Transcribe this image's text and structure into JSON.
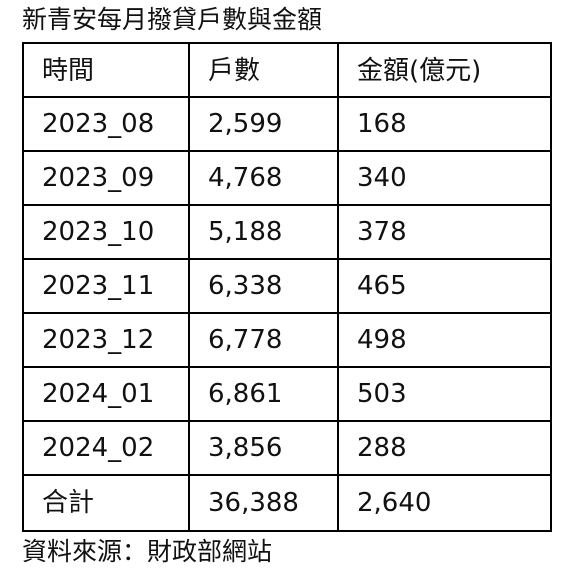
{
  "title": "新青安每月撥貸戶數與金額",
  "table": {
    "header": [
      "時間",
      "戶數",
      "金額(億元)"
    ],
    "rows": [
      [
        "2023_08",
        "2,599",
        "168"
      ],
      [
        "2023_09",
        "4,768",
        "340"
      ],
      [
        "2023_10",
        "5,188",
        "378"
      ],
      [
        "2023_11",
        "6,338",
        "465"
      ],
      [
        "2023_12",
        "6,778",
        "498"
      ],
      [
        "2024_01",
        "6,861",
        "503"
      ],
      [
        "2024_02",
        "3,856",
        "288"
      ],
      [
        "合計",
        "36,388",
        "2,640"
      ]
    ]
  },
  "source": "資料來源：財政部網站"
}
